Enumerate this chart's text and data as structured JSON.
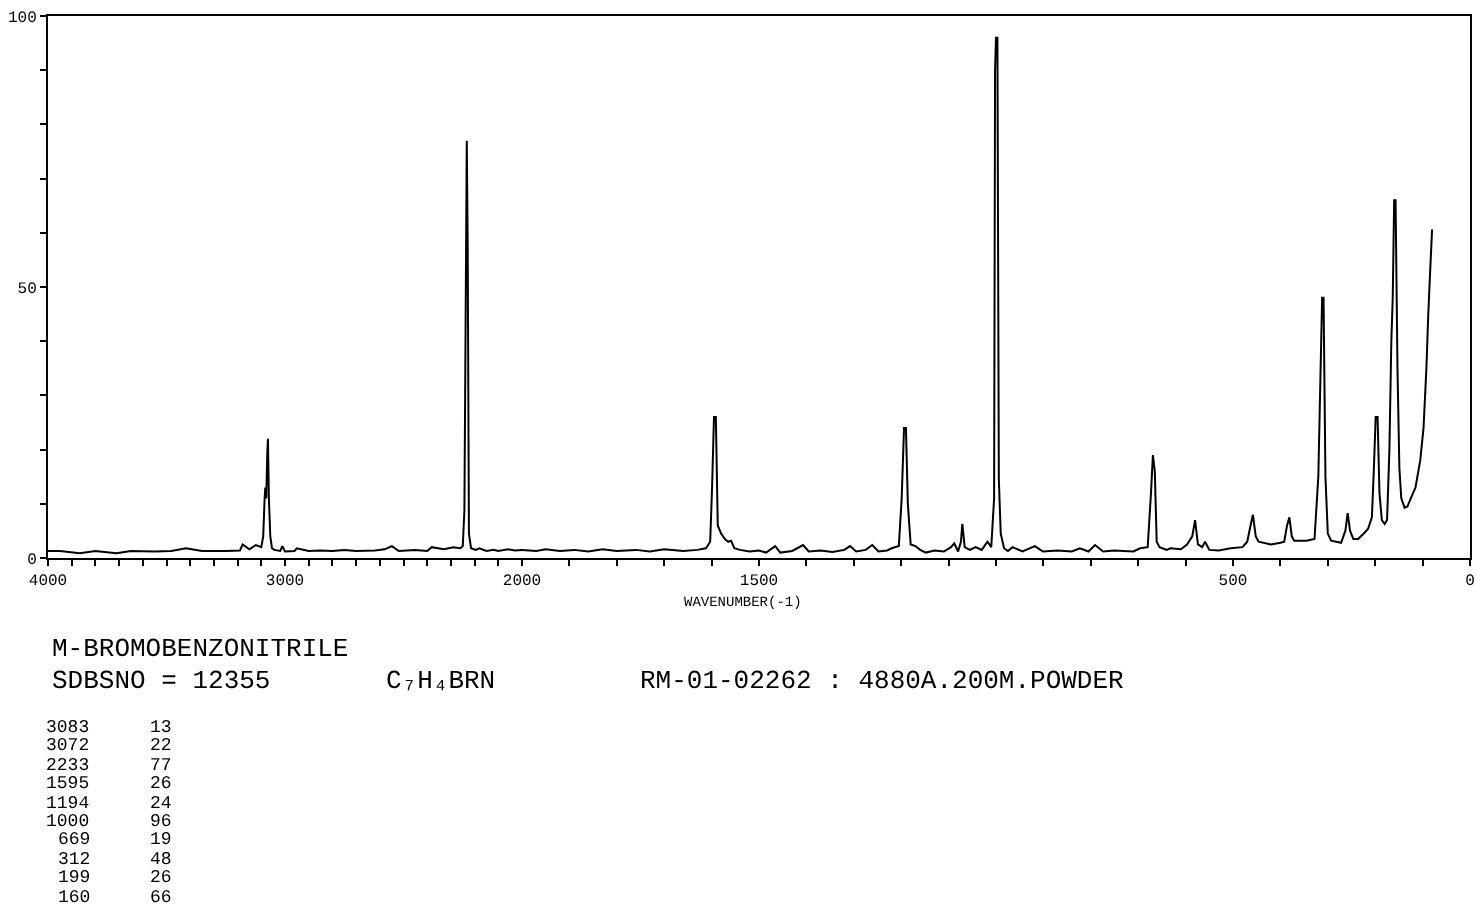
{
  "chart_data": [
    {
      "type": "line",
      "xlim": [
        4000,
        2000
      ],
      "ylim": [
        0,
        100
      ],
      "xticks": [
        4000,
        {
          "value": 3900,
          "label": null
        },
        {
          "value": 3800,
          "label": null
        },
        {
          "value": 3700,
          "label": null
        },
        {
          "value": 3600,
          "label": null
        },
        {
          "value": 3500,
          "label": null
        },
        {
          "value": 3400,
          "label": null
        },
        {
          "value": 3300,
          "label": null
        },
        {
          "value": 3200,
          "label": null
        },
        {
          "value": 3100,
          "label": null
        },
        3000,
        {
          "value": 2900,
          "label": null
        },
        {
          "value": 2800,
          "label": null
        },
        {
          "value": 2700,
          "label": null
        },
        {
          "value": 2600,
          "label": null
        },
        {
          "value": 2500,
          "label": null
        },
        {
          "value": 2400,
          "label": null
        },
        {
          "value": 2300,
          "label": null
        },
        {
          "value": 2200,
          "label": null
        },
        {
          "value": 2100,
          "label": null
        },
        2000
      ],
      "yticks": [
        0,
        {
          "value": 10,
          "label": null
        },
        {
          "value": 20,
          "label": null
        },
        {
          "value": 30,
          "label": null
        },
        {
          "value": 40,
          "label": null
        },
        50,
        {
          "value": 60,
          "label": null
        },
        {
          "value": 70,
          "label": null
        },
        {
          "value": 80,
          "label": null
        },
        {
          "value": 90,
          "label": null
        },
        100
      ],
      "series": [
        {
          "color": "#000000",
          "x": [
            4000,
            3950,
            3866,
            3800,
            3712,
            3650,
            3550,
            3480,
            3418,
            3350,
            3250,
            3190,
            3179,
            3150,
            3123,
            3100,
            3092,
            3086,
            3083,
            3079,
            3075,
            3072,
            3068,
            3062,
            3055,
            3045,
            3020,
            3011,
            3000,
            2960,
            2950,
            2900,
            2850,
            2800,
            2750,
            2700,
            2620,
            2580,
            2549,
            2520,
            2450,
            2400,
            2381,
            2330,
            2290,
            2260,
            2250,
            2243,
            2233,
            2229,
            2224,
            2215,
            2195,
            2180,
            2150,
            2120,
            2100,
            2060,
            2030,
            2000
          ],
          "values": [
            1.3,
            1.3,
            0.9,
            1.3,
            0.9,
            1.3,
            1.2,
            1.3,
            1.8,
            1.3,
            1.3,
            1.4,
            2.5,
            1.6,
            2.4,
            2.0,
            4,
            11,
            13,
            11,
            19,
            22,
            11,
            4,
            1.8,
            1.5,
            1.3,
            2.2,
            1.2,
            1.3,
            1.8,
            1.3,
            1.4,
            1.3,
            1.5,
            1.3,
            1.4,
            1.6,
            2.2,
            1.3,
            1.5,
            1.3,
            2.0,
            1.6,
            2.0,
            1.8,
            2.2,
            8.7,
            77,
            57,
            4.5,
            1.8,
            1.5,
            1.8,
            1.3,
            1.5,
            1.3,
            1.6,
            1.4,
            1.5
          ]
        }
      ],
      "annotations": [
        "M-BROMOBENZONITRILE",
        "SDBSNO = 12355",
        "C₇H₄BRN",
        "RM-01-02262 : 4880A.200M.POWDER",
        "3083",
        "13",
        "3072",
        "22",
        "2233",
        "77",
        "1595",
        "26",
        "1194",
        "24",
        "1000",
        "96",
        "669",
        "19",
        "312",
        "48",
        "199",
        "26",
        "160",
        "66"
      ]
    },
    {
      "type": "line",
      "xlim": [
        2000,
        0
      ],
      "ylim": [
        0,
        100
      ],
      "xlabel": "WAVENUMBER(-1)",
      "tick_labels": "x",
      "xticks": [
        {
          "value": 1900,
          "label": null
        },
        {
          "value": 1800,
          "label": null
        },
        {
          "value": 1700,
          "label": null
        },
        {
          "value": 1600,
          "label": null
        },
        1500,
        {
          "value": 1400,
          "label": null
        },
        {
          "value": 1300,
          "label": null
        },
        {
          "value": 1200,
          "label": null
        },
        {
          "value": 1100,
          "label": null
        },
        {
          "value": 1000,
          "label": null
        },
        {
          "value": 900,
          "label": null
        },
        {
          "value": 800,
          "label": null
        },
        {
          "value": 700,
          "label": null
        },
        {
          "value": 600,
          "label": null
        },
        500,
        {
          "value": 400,
          "label": null
        },
        {
          "value": 300,
          "label": null
        },
        {
          "value": 200,
          "label": null
        },
        {
          "value": 100,
          "label": null
        },
        0
      ],
      "series": [
        {
          "color": "#000000",
          "x": [
            2000,
            1970,
            1950,
            1920,
            1890,
            1860,
            1830,
            1800,
            1760,
            1730,
            1700,
            1660,
            1630,
            1612,
            1603,
            1599,
            1595,
            1591,
            1587,
            1580,
            1572,
            1565,
            1559,
            1552,
            1540,
            1520,
            1500,
            1485,
            1466,
            1455,
            1430,
            1407,
            1395,
            1370,
            1345,
            1320,
            1308,
            1295,
            1275,
            1261,
            1248,
            1230,
            1220,
            1205,
            1199,
            1194,
            1190,
            1186,
            1180,
            1170,
            1160,
            1148,
            1130,
            1110,
            1095,
            1088,
            1080,
            1074,
            1071,
            1066,
            1055,
            1043,
            1030,
            1018,
            1010,
            1004,
            1002,
            1000,
            997,
            994,
            990,
            983,
            975,
            965,
            944,
            918,
            901,
            870,
            840,
            823,
            805,
            791,
            774,
            750,
            731,
            710,
            696,
            680,
            673,
            669,
            665,
            661,
            655,
            640,
            632,
            610,
            597,
            586,
            580,
            574,
            565,
            559,
            550,
            530,
            505,
            480,
            470,
            463,
            458,
            452,
            446,
            420,
            400,
            392,
            386,
            381,
            376,
            371,
            345,
            328,
            320,
            312,
            309,
            305,
            300,
            293,
            272,
            263,
            258,
            253,
            246,
            236,
            222,
            215,
            207,
            203,
            199,
            195,
            191,
            186,
            180,
            175,
            170,
            166,
            163,
            160,
            157,
            153,
            149,
            145,
            138,
            132,
            125,
            115,
            105,
            98,
            92,
            88,
            84,
            80
          ],
          "values": [
            1.5,
            1.3,
            1.6,
            1.3,
            1.5,
            1.2,
            1.6,
            1.3,
            1.5,
            1.2,
            1.6,
            1.3,
            1.5,
            1.8,
            3,
            13,
            26,
            26,
            6,
            4.5,
            3.5,
            3,
            3.2,
            1.8,
            1.5,
            1.2,
            1.4,
            1.0,
            2.2,
            1.0,
            1.3,
            2.4,
            1.2,
            1.4,
            1.1,
            1.5,
            2.2,
            1.2,
            1.5,
            2.4,
            1.2,
            1.4,
            1.8,
            2.2,
            11,
            24,
            24,
            10,
            2.5,
            2.2,
            1.5,
            1.0,
            1.4,
            1.2,
            2.0,
            2.7,
            1.2,
            3,
            6.3,
            2,
            1.5,
            2.0,
            1.5,
            3,
            2,
            11,
            90,
            96,
            96,
            14.5,
            4.5,
            1.8,
            1.3,
            2,
            1.2,
            2.2,
            1.2,
            1.4,
            1.2,
            1.8,
            1.2,
            2.4,
            1.2,
            1.4,
            1.3,
            1.2,
            1.8,
            2,
            12,
            19,
            16,
            3,
            2,
            1.5,
            1.8,
            1.6,
            2.5,
            4,
            7,
            2.5,
            2.0,
            3,
            1.5,
            1.4,
            1.8,
            2.0,
            3,
            6,
            8,
            4,
            3,
            2.5,
            2.8,
            3,
            6,
            7.5,
            4,
            3.2,
            3.2,
            3.5,
            15,
            48,
            48,
            15,
            4.5,
            3.2,
            2.8,
            5,
            8.3,
            5,
            3.5,
            3.5,
            4.7,
            5.4,
            7.5,
            16,
            26,
            26,
            12,
            7,
            6.3,
            7,
            20,
            40,
            48,
            66,
            66,
            35,
            16.6,
            11,
            9.3,
            9.5,
            11,
            13,
            18,
            24,
            35,
            45,
            53,
            60.6
          ]
        }
      ]
    }
  ]
}
